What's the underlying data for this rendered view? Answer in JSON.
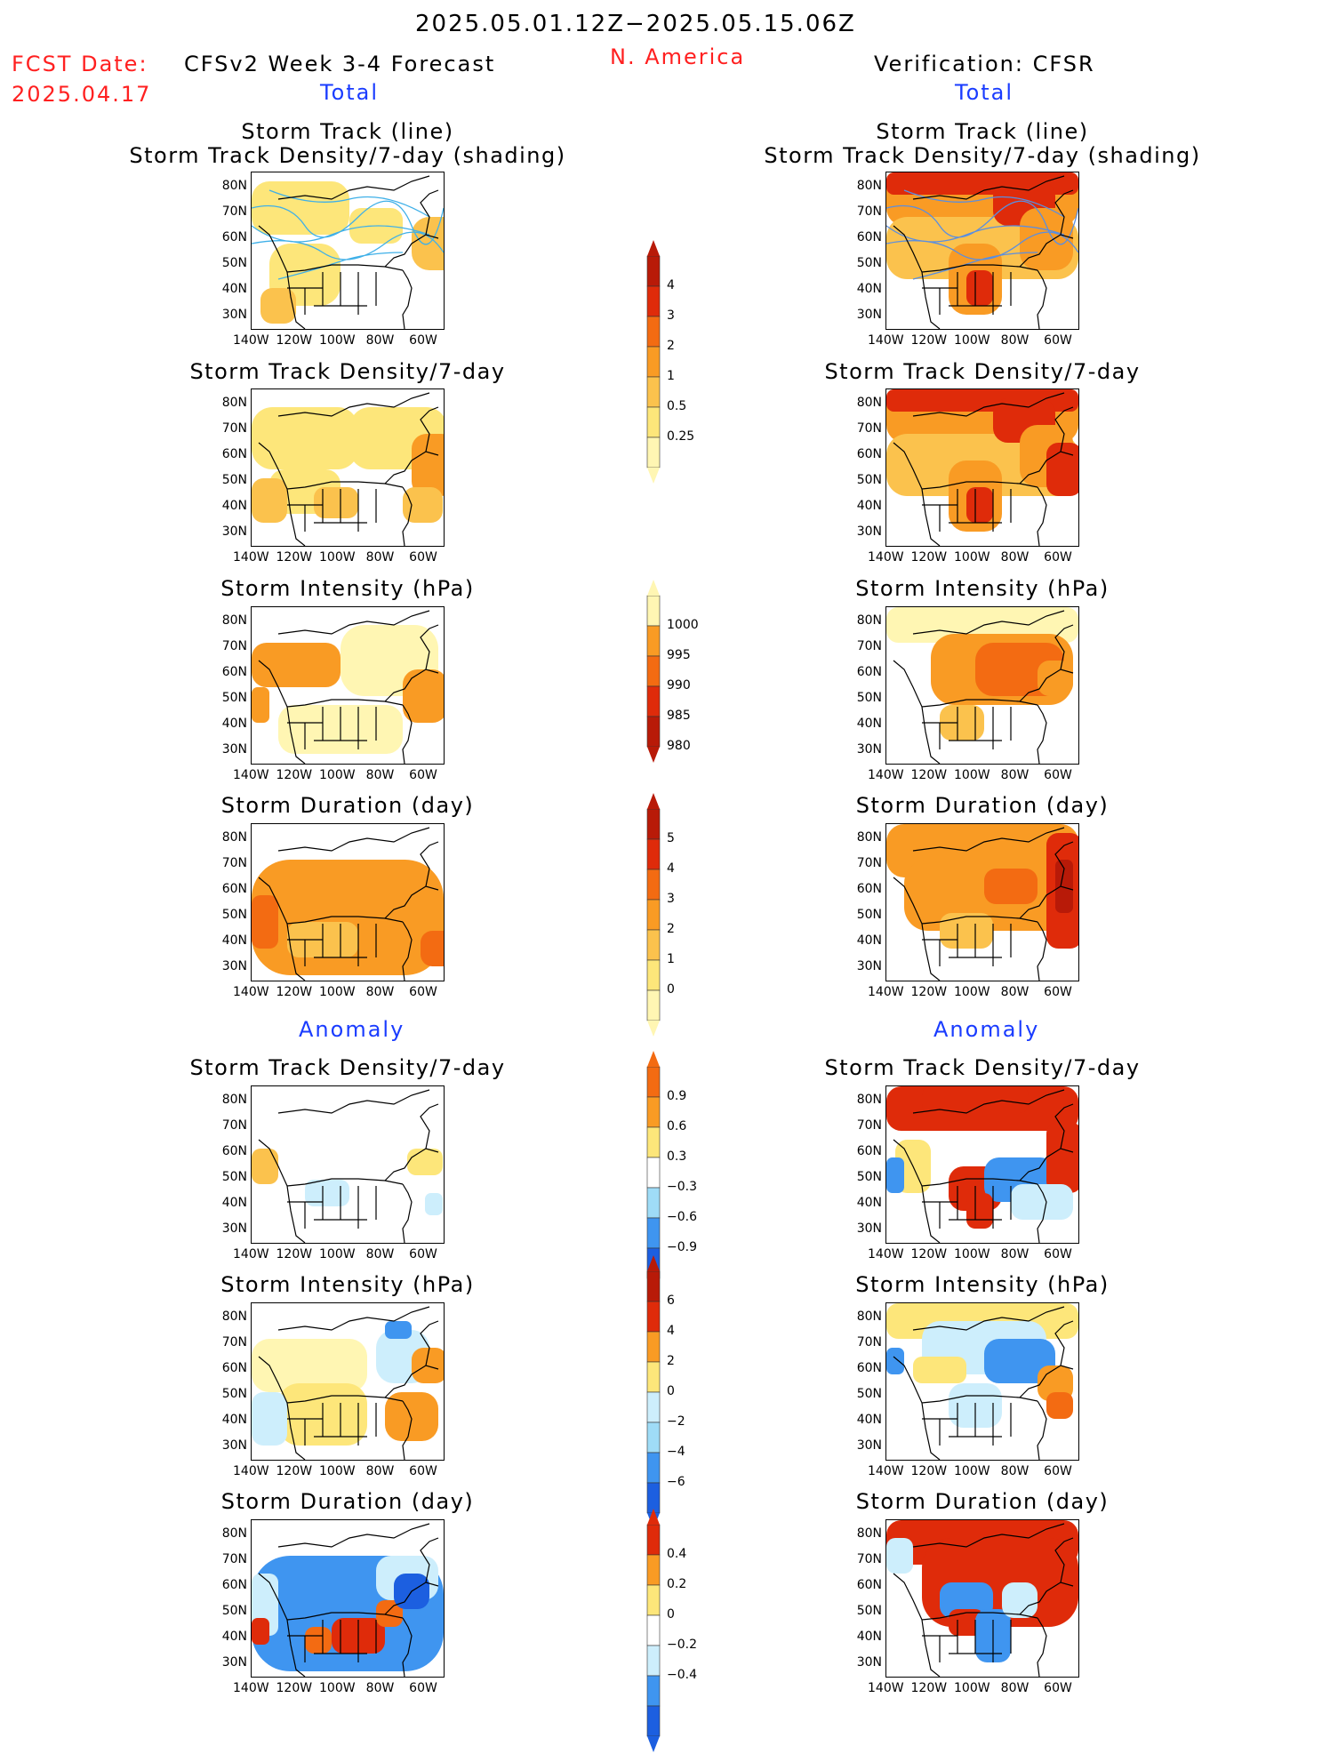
{
  "header": {
    "date_range": "2025.05.01.12Z−2025.05.15.06Z",
    "fcst_date_label": "FCST Date:",
    "fcst_date": "2025.04.17",
    "model_title": "CFSv2 Week 3-4 Forecast",
    "region": "N. America",
    "verification": "Verification: CFSR",
    "total_left": "Total",
    "total_right": "Total",
    "anomaly_left": "Anomaly",
    "anomaly_right": "Anomaly"
  },
  "panel_titles": {
    "track_line": "Storm Track (line)",
    "track_density_shading": "Storm Track Density/7-day (shading)",
    "track_density": "Storm Track Density/7-day",
    "intensity": "Storm Intensity (hPa)",
    "duration": "Storm Duration (day)"
  },
  "axes": {
    "lat_labels": [
      "80N",
      "70N",
      "60N",
      "50N",
      "40N",
      "30N"
    ],
    "lon_labels": [
      "140W",
      "120W",
      "100W",
      "80W",
      "60W"
    ]
  },
  "colors": {
    "c1": "#fff6b3",
    "c2": "#fde67a",
    "c3": "#fbc24d",
    "c4": "#f99b24",
    "c5": "#f36b12",
    "c6": "#df2b0a",
    "c7": "#b81a08",
    "blue1": "#cdeefc",
    "blue2": "#9fdcf7",
    "blue3": "#3f95f0",
    "blue4": "#1c5fe0",
    "track_line_fcst": "#3fb0e8",
    "track_line_ver": "#5a8ee0"
  },
  "colorbars": [
    {
      "id": "density_total",
      "labels": [
        "4",
        "3",
        "2",
        "1",
        "0.5",
        "0.25"
      ]
    },
    {
      "id": "intensity_total",
      "labels": [
        "1000",
        "995",
        "990",
        "985",
        "980"
      ]
    },
    {
      "id": "duration_total",
      "labels": [
        "5",
        "4",
        "3",
        "2",
        "1",
        "0"
      ]
    },
    {
      "id": "density_anom",
      "labels": [
        "0.9",
        "0.6",
        "0.3",
        "−0.3",
        "−0.6",
        "−0.9"
      ]
    },
    {
      "id": "intensity_anom",
      "labels": [
        "6",
        "4",
        "2",
        "0",
        "−2",
        "−4",
        "−6"
      ]
    },
    {
      "id": "duration_anom",
      "labels": [
        "0.4",
        "0.2",
        "0",
        "−0.2",
        "−0.4"
      ]
    }
  ]
}
